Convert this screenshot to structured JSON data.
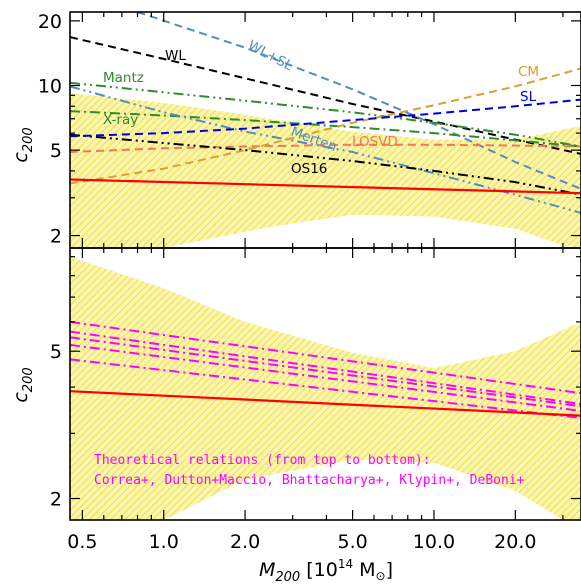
{
  "chart_data": [
    {
      "type": "line",
      "panel": "top",
      "ylabel": "c200",
      "yscale": "log",
      "xscale": "log",
      "xlim": [
        0.45,
        35
      ],
      "ylim": [
        1.75,
        22
      ],
      "yticks": [
        2,
        5,
        10,
        20
      ],
      "ytick_labels": [
        "2",
        "5",
        "10",
        "20"
      ],
      "band": {
        "color": "#f5e96a",
        "upper": [
          [
            0.45,
            9.2
          ],
          [
            1.0,
            8.3
          ],
          [
            2.0,
            7.3
          ],
          [
            5.0,
            6.1
          ],
          [
            10.0,
            5.6
          ],
          [
            20.0,
            5.6
          ],
          [
            35.0,
            6.5
          ]
        ],
        "lower": [
          [
            0.45,
            1.75
          ],
          [
            1.0,
            1.75
          ],
          [
            1.7,
            2.0
          ],
          [
            2.5,
            2.2
          ],
          [
            5.0,
            2.5
          ],
          [
            10.0,
            2.45
          ],
          [
            20.0,
            2.15
          ],
          [
            30.0,
            1.8
          ],
          [
            35.0,
            1.75
          ]
        ]
      },
      "series": [
        {
          "name": "WL",
          "color": "#000000",
          "dash": "dashed",
          "points": [
            [
              0.45,
              16.8
            ],
            [
              1.0,
              13.3
            ],
            [
              2.0,
              10.8
            ],
            [
              5.0,
              8.2
            ],
            [
              10.0,
              6.8
            ],
            [
              20.0,
              5.6
            ],
            [
              35.0,
              4.8
            ]
          ]
        },
        {
          "name": "WL+SL",
          "color": "#4f8fbf",
          "dash": "dashed",
          "points": [
            [
              0.8,
              22.0
            ],
            [
              2.0,
              15.0
            ],
            [
              5.0,
              9.6
            ],
            [
              10.0,
              6.6
            ],
            [
              20.0,
              4.4
            ],
            [
              35.0,
              3.3
            ]
          ]
        },
        {
          "name": "Mantz",
          "color": "#2e8b2e",
          "dash": "dashdotdot",
          "points": [
            [
              0.45,
              10.3
            ],
            [
              1.0,
              9.3
            ],
            [
              2.0,
              8.5
            ],
            [
              5.0,
              7.5
            ],
            [
              10.0,
              6.7
            ],
            [
              20.0,
              5.9
            ],
            [
              35.0,
              5.2
            ]
          ]
        },
        {
          "name": "X-ray",
          "color": "#2e8b2e",
          "dash": "dashdot",
          "points": [
            [
              0.45,
              7.6
            ],
            [
              1.0,
              7.25
            ],
            [
              2.0,
              6.9
            ],
            [
              5.0,
              6.4
            ],
            [
              10.0,
              6.0
            ],
            [
              20.0,
              5.55
            ],
            [
              35.0,
              5.2
            ]
          ]
        },
        {
          "name": "Merten",
          "color": "#4f8fbf",
          "dash": "dashdotdot",
          "points": [
            [
              0.45,
              9.9
            ],
            [
              1.0,
              7.5
            ],
            [
              2.0,
              6.1
            ],
            [
              5.0,
              4.9
            ],
            [
              10.0,
              3.9
            ],
            [
              20.0,
              3.1
            ],
            [
              35.0,
              2.55
            ]
          ]
        },
        {
          "name": "LOSVD",
          "color": "#f07858",
          "dash": "dashed",
          "points": [
            [
              0.45,
              4.9
            ],
            [
              1.0,
              5.1
            ],
            [
              2.0,
              5.2
            ],
            [
              5.0,
              5.3
            ],
            [
              10.0,
              5.3
            ],
            [
              20.0,
              5.25
            ],
            [
              35.0,
              5.2
            ]
          ]
        },
        {
          "name": "OS16",
          "color": "#000000",
          "dash": "dashdotdot",
          "points": [
            [
              0.45,
              5.9
            ],
            [
              1.0,
              5.4
            ],
            [
              2.0,
              5.0
            ],
            [
              5.0,
              4.45
            ],
            [
              10.0,
              4.0
            ],
            [
              20.0,
              3.55
            ],
            [
              35.0,
              3.1
            ]
          ]
        },
        {
          "name": "CM",
          "color": "#d8a030",
          "dash": "dashed",
          "points": [
            [
              0.45,
              3.5
            ],
            [
              1.0,
              4.1
            ],
            [
              2.0,
              5.0
            ],
            [
              5.0,
              6.7
            ],
            [
              10.0,
              8.1
            ],
            [
              20.0,
              9.9
            ],
            [
              35.0,
              12.0
            ]
          ]
        },
        {
          "name": "SL",
          "color": "#0000dd",
          "dash": "dashed",
          "points": [
            [
              0.45,
              5.8
            ],
            [
              1.0,
              6.0
            ],
            [
              2.0,
              6.3
            ],
            [
              5.0,
              6.9
            ],
            [
              10.0,
              7.4
            ],
            [
              20.0,
              8.0
            ],
            [
              35.0,
              8.6
            ]
          ]
        },
        {
          "name": "",
          "color": "#ff0000",
          "dash": "solid",
          "points": [
            [
              0.45,
              3.65
            ],
            [
              35.0,
              3.15
            ]
          ]
        }
      ],
      "labels": [
        {
          "text": "WL",
          "color": "#000000"
        },
        {
          "text": "WL+SL",
          "color": "#4f8fbf"
        },
        {
          "text": "Mantz",
          "color": "#2e8b2e"
        },
        {
          "text": "X-ray",
          "color": "#2e8b2e"
        },
        {
          "text": "Merten",
          "color": "#4f8fbf"
        },
        {
          "text": "LOSVD",
          "color": "#f07858"
        },
        {
          "text": "OS16",
          "color": "#000000"
        },
        {
          "text": "CM",
          "color": "#d8a030"
        },
        {
          "text": "SL",
          "color": "#0000dd"
        }
      ]
    },
    {
      "type": "line",
      "panel": "bottom",
      "ylabel": "c200",
      "xlabel": "M200 [10^14 M⊙]",
      "yscale": "log",
      "xscale": "log",
      "xlim": [
        0.45,
        35
      ],
      "ylim": [
        1.75,
        9.5
      ],
      "yticks": [
        2,
        5
      ],
      "ytick_labels": [
        "2",
        "5"
      ],
      "xticks": [
        0.5,
        1.0,
        2.0,
        5.0,
        10.0,
        20.0
      ],
      "xtick_labels": [
        "0.5",
        "1.0",
        "2.0",
        "5.0",
        "10.0",
        "20.0"
      ],
      "band": {
        "color": "#f5e96a",
        "upper": [
          [
            0.45,
            9.0
          ],
          [
            1.0,
            7.4
          ],
          [
            2.0,
            6.0
          ],
          [
            5.0,
            4.95
          ],
          [
            10.0,
            4.5
          ],
          [
            20.0,
            5.0
          ],
          [
            35.0,
            6.0
          ]
        ],
        "lower": [
          [
            0.45,
            1.75
          ],
          [
            1.0,
            1.75
          ],
          [
            2.0,
            2.25
          ],
          [
            5.0,
            2.55
          ],
          [
            10.0,
            2.5
          ],
          [
            20.0,
            2.1
          ],
          [
            30.0,
            1.75
          ],
          [
            35.0,
            1.75
          ]
        ]
      },
      "series": [
        {
          "name": "Correa+",
          "color": "#ff00ff",
          "dash": "dashdot",
          "points": [
            [
              0.45,
              6.0
            ],
            [
              35.0,
              3.85
            ]
          ]
        },
        {
          "name": "Dutton+Maccio",
          "color": "#ff00ff",
          "dash": "dashdot",
          "points": [
            [
              0.45,
              5.65
            ],
            [
              35.0,
              3.6
            ]
          ]
        },
        {
          "name": "Bhattacharya+",
          "color": "#ff00ff",
          "dash": "dashdot",
          "points": [
            [
              0.45,
              5.45
            ],
            [
              35.0,
              3.55
            ]
          ]
        },
        {
          "name": "Klypin+",
          "color": "#ff00ff",
          "dash": "dashdot",
          "points": [
            [
              0.45,
              5.2
            ],
            [
              35.0,
              3.45
            ]
          ]
        },
        {
          "name": "DeBoni+",
          "color": "#ff00ff",
          "dash": "dashdot",
          "points": [
            [
              0.45,
              4.75
            ],
            [
              35.0,
              3.3
            ]
          ]
        },
        {
          "name": "",
          "color": "#ff0000",
          "dash": "solid",
          "points": [
            [
              0.45,
              3.9
            ],
            [
              35.0,
              3.35
            ]
          ]
        }
      ],
      "annotation": {
        "line1": "Theoretical relations (from top to bottom):",
        "line2": "Correa+, Dutton+Maccio, Bhattacharya+, Klypin+, DeBoni+",
        "color": "#ff00ff"
      }
    }
  ],
  "axis_text": {
    "ylabel_main": "c",
    "ylabel_sub": "200",
    "xlabel_main": "M",
    "xlabel_sub": "200",
    "xlabel_bracket_open": "[10",
    "xlabel_exp": "14",
    "xlabel_unit": " M",
    "xlabel_sun": "⊙",
    "xlabel_bracket_close": "]"
  }
}
